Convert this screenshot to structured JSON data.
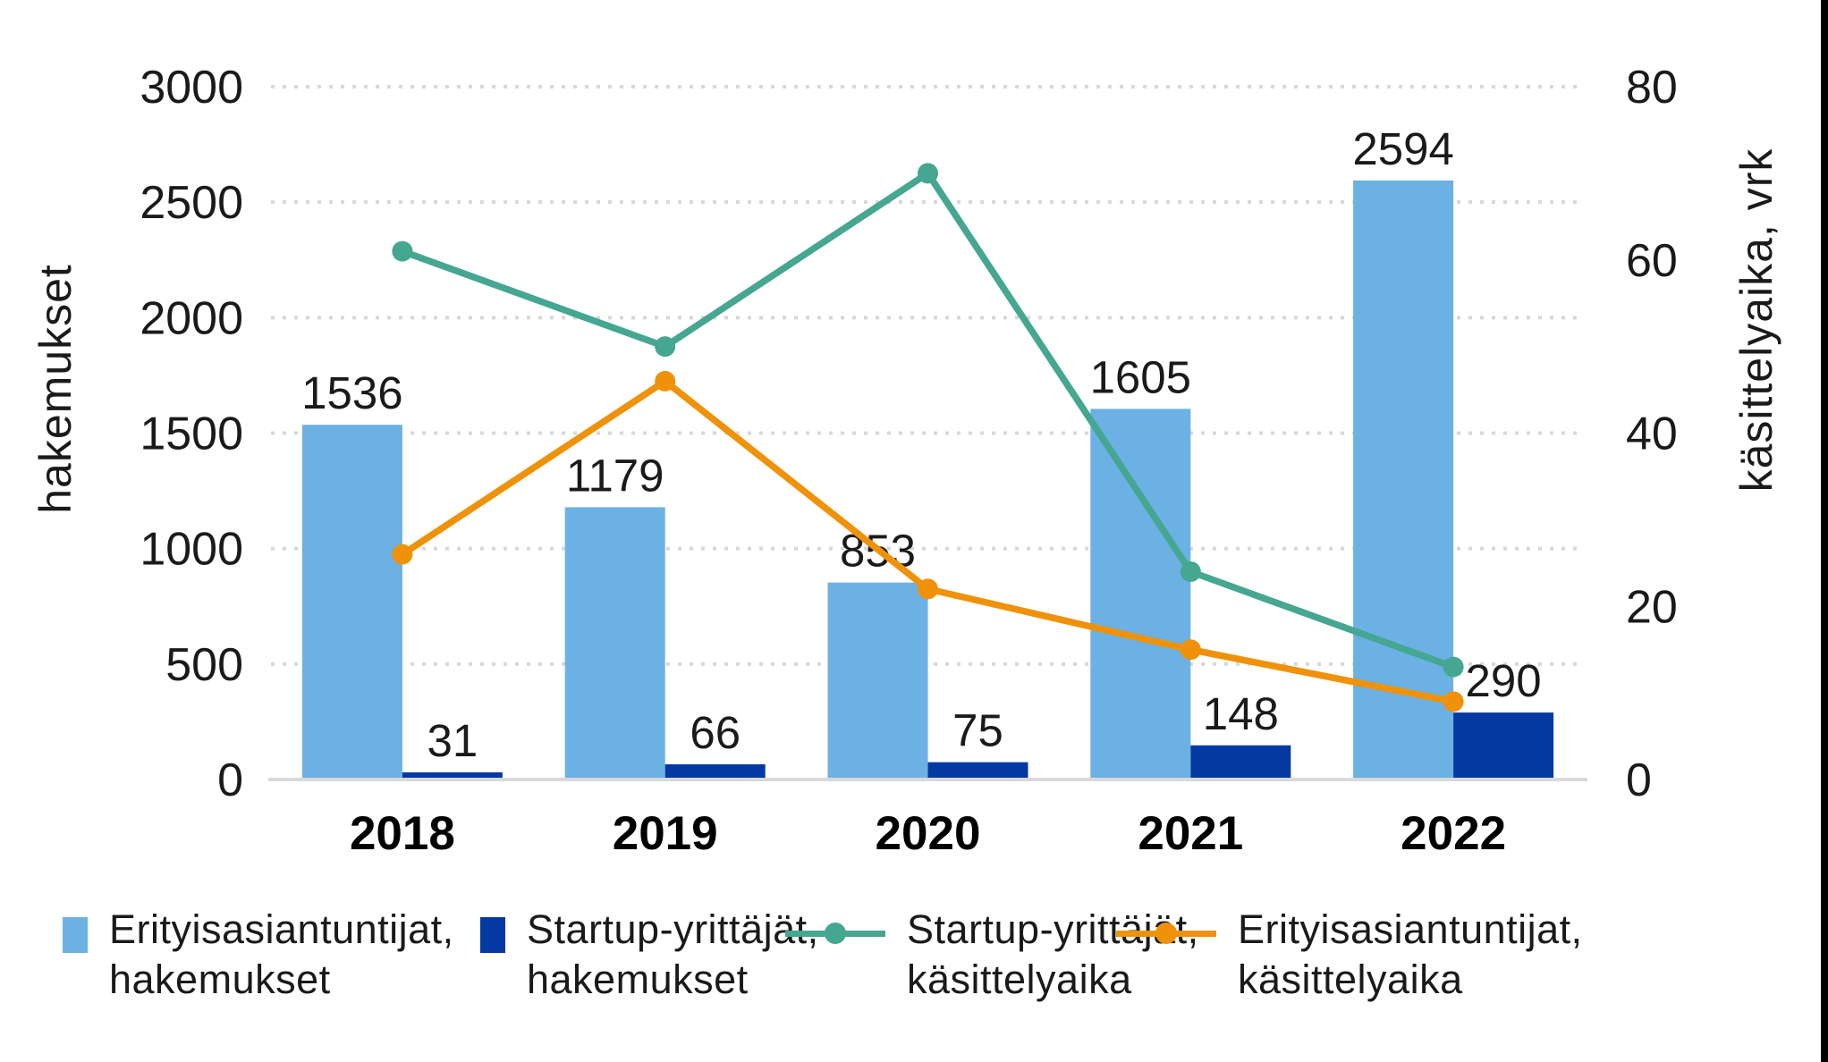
{
  "chart_data": {
    "type": "combo-bar-line",
    "categories": [
      "2018",
      "2019",
      "2020",
      "2021",
      "2022"
    ],
    "series": [
      {
        "name": "Erityisasiantuntijat, hakemukset",
        "type": "bar",
        "axis": "left",
        "color": "#6BB1E3",
        "values": [
          1536,
          1179,
          853,
          1605,
          2594
        ],
        "show_labels": true
      },
      {
        "name": "Startup-yrittäjät, hakemukset",
        "type": "bar",
        "axis": "left",
        "color": "#0439A4",
        "values": [
          31,
          66,
          75,
          148,
          290
        ],
        "show_labels": true
      },
      {
        "name": "Startup-yrittäjät, käsittelyaika",
        "type": "line",
        "axis": "right",
        "color": "#45A692",
        "values": [
          61,
          50,
          70,
          24,
          13
        ],
        "show_labels": false
      },
      {
        "name": "Erityisasiantuntijat, käsittelyaika",
        "type": "line",
        "axis": "right",
        "color": "#EF9209",
        "values": [
          26,
          46,
          22,
          15,
          9
        ],
        "show_labels": false
      }
    ],
    "left_axis": {
      "title": "hakemukset",
      "min": 0,
      "max": 3000,
      "ticks": [
        0,
        500,
        1000,
        1500,
        2000,
        2500,
        3000
      ]
    },
    "right_axis": {
      "title": "käsittelyaika, vrk",
      "min": 0,
      "max": 80,
      "ticks": [
        0,
        20,
        40,
        60,
        80
      ]
    },
    "grid": {
      "style": "dotted",
      "color": "#D8D8D8",
      "axis_line_color": "#D9D9D9"
    },
    "legend_position": "bottom"
  },
  "legend": {
    "items": [
      {
        "swatch": "bar",
        "color": "#6BB1E3",
        "line1": "Erityisasiantuntijat,",
        "line2": "hakemukset"
      },
      {
        "swatch": "bar",
        "color": "#0439A4",
        "line1": "Startup-yrittäjät,",
        "line2": "hakemukset"
      },
      {
        "swatch": "line",
        "color": "#45A692",
        "line1": "Startup-yrittäjät,",
        "line2": "käsittelyaika"
      },
      {
        "swatch": "line",
        "color": "#EF9209",
        "line1": "Erityisasiantuntijat,",
        "line2": "käsittelyaika"
      }
    ]
  }
}
